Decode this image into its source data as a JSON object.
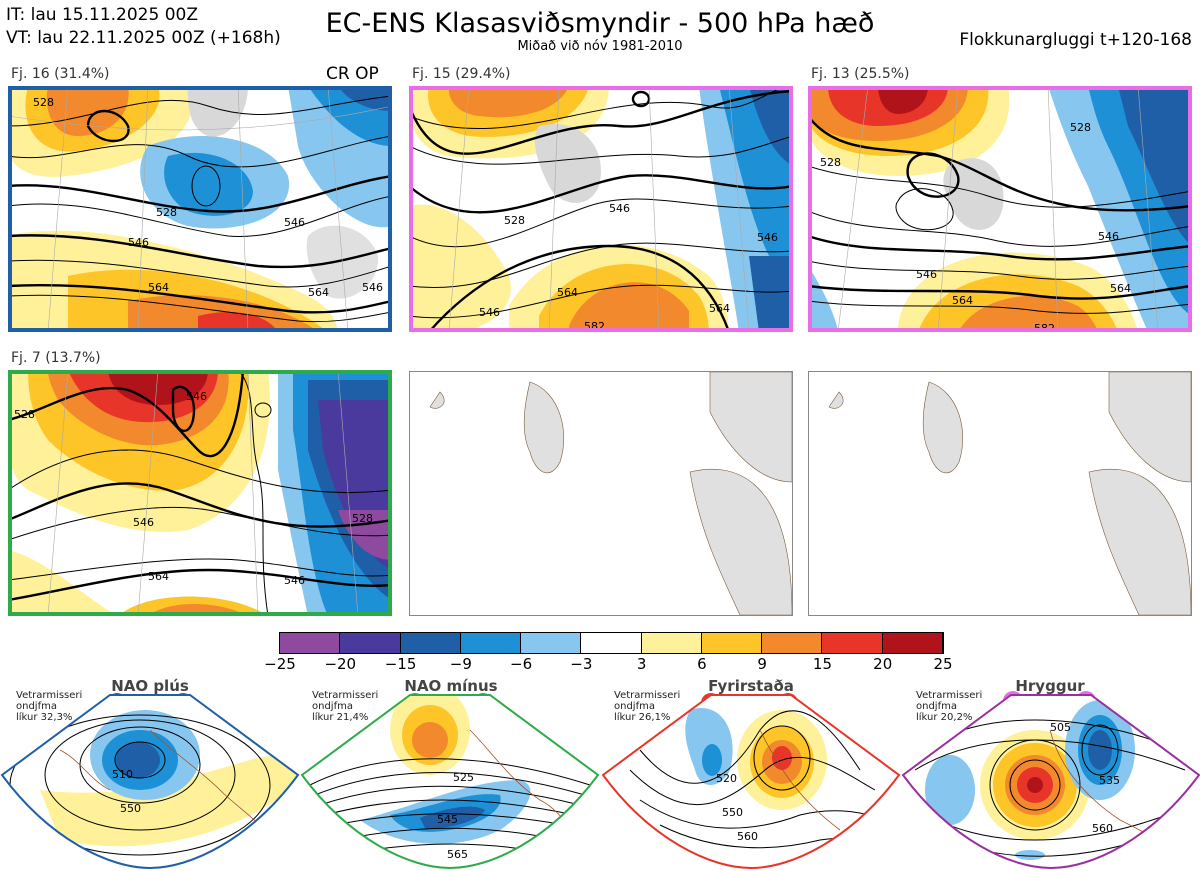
{
  "header": {
    "init_time": "IT: lau 15.11.2025 00Z",
    "valid_time": "VT: lau 22.11.2025 00Z  (+168h)",
    "title": "EC-ENS Klasasviðsmyndir - 500 hPa hæð",
    "subtitle": "Miðað við nóv 1981-2010",
    "window": "Flokkunargluggi t+120-168"
  },
  "panels": [
    {
      "label": "Fj. 16 (31.4%)",
      "tag": "CR OP",
      "border": "#1f5fa8",
      "contours": [
        "528",
        "528",
        "546",
        "564",
        "546",
        "546",
        "564"
      ]
    },
    {
      "label": "Fj. 15 (29.4%)",
      "tag": "",
      "border": "#e86ee8",
      "contours": [
        "528",
        "546",
        "564",
        "546",
        "564",
        "546",
        "582"
      ]
    },
    {
      "label": "Fj. 13 (25.5%)",
      "tag": "",
      "border": "#e86ee8",
      "contours": [
        "528",
        "528",
        "546",
        "546",
        "564",
        "564",
        "582"
      ]
    },
    {
      "label": "Fj. 7 (13.7%)",
      "tag": "",
      "border": "#2faa4a",
      "contours": [
        "528",
        "546",
        "528",
        "546",
        "564",
        "546"
      ]
    }
  ],
  "colorbar": {
    "ticks": [
      "−25",
      "−20",
      "−15",
      "−9",
      "−6",
      "−3",
      "3",
      "6",
      "9",
      "15",
      "20",
      "25"
    ],
    "colors": [
      "#8e4a9e",
      "#4a3a9e",
      "#1f5fa8",
      "#1e90d6",
      "#87c6ee",
      "#ffffff",
      "#fff19a",
      "#fdc527",
      "#f3892d",
      "#e8352a",
      "#b0141a"
    ]
  },
  "regimes": [
    {
      "title": "NAO plús",
      "note": [
        "Vetrarmisseri",
        "ondjfma",
        "líkur 32,3%"
      ],
      "color": "#1f5fa8",
      "contours": [
        "510",
        "550"
      ]
    },
    {
      "title": "NAO mínus",
      "note": [
        "Vetrarmisseri",
        "ondjfma",
        "líkur 21,4%"
      ],
      "color": "#2faa4a",
      "contours": [
        "525",
        "545",
        "565"
      ]
    },
    {
      "title": "Fyrirstaða",
      "note": [
        "Vetrarmisseri",
        "ondjfma",
        "líkur 26,1%"
      ],
      "color": "#e8352a",
      "contours": [
        "520",
        "550",
        "560"
      ]
    },
    {
      "title": "Hryggur",
      "note": [
        "Vetrarmisseri",
        "ondjfma",
        "líkur 20,2%"
      ],
      "color": "#9b2fa0",
      "contours": [
        "505",
        "535",
        "560"
      ]
    }
  ]
}
